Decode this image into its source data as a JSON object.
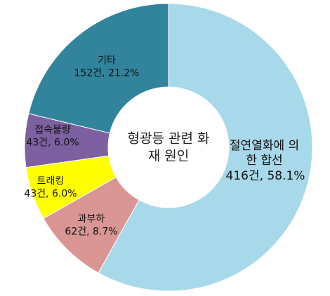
{
  "chart_data": {
    "type": "donut",
    "title": "형광등 관련 화재 원인",
    "categories": [
      "절연열화에 의한 합선",
      "과부하",
      "트래킹",
      "접속불량",
      "기타"
    ],
    "values": [
      416,
      62,
      43,
      43,
      152
    ],
    "value_labels": [
      "416건, 58.1%",
      "62건, 8.7%",
      "43건, 6.0%",
      "43건, 6.0%",
      "152건, 21.2%"
    ],
    "colors": [
      "#a8d9ea",
      "#d99694",
      "#ffff00",
      "#7d60a0",
      "#31849b"
    ]
  }
}
